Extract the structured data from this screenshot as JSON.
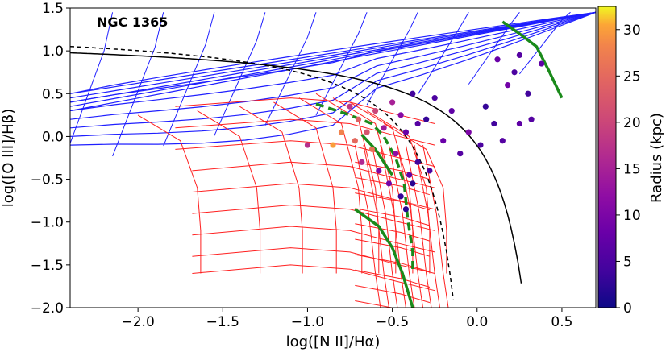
{
  "chart_data": {
    "type": "scatter",
    "title": "NGC 1365",
    "xlabel": "log([N II]/Hα)",
    "ylabel": "log([O III]/Hβ)",
    "xlim": [
      -2.4,
      0.7
    ],
    "ylim": [
      -2.0,
      1.5
    ],
    "xticks": [
      -2.0,
      -1.5,
      -1.0,
      -0.5,
      0.0,
      0.5
    ],
    "xtick_labels": [
      "−2.0",
      "−1.5",
      "−1.0",
      "−0.5",
      "0.0",
      "0.5"
    ],
    "yticks": [
      -2.0,
      -1.5,
      -1.0,
      -0.5,
      0.0,
      0.5,
      1.0,
      1.5
    ],
    "ytick_labels": [
      "−2.0",
      "−1.5",
      "−1.0",
      "−0.5",
      "0.0",
      "0.5",
      "1.0",
      "1.5"
    ],
    "colorbar": {
      "label": "Radius (kpc)",
      "colormap": "plasma",
      "range": [
        0,
        32.5
      ],
      "ticks": [
        0,
        5,
        10,
        15,
        20,
        25,
        30
      ],
      "tick_labels": [
        "0",
        "5",
        "10",
        "15",
        "20",
        "25",
        "30"
      ]
    },
    "curves": {
      "kewley_solid": {
        "color": "#000000",
        "style": "solid"
      },
      "kauffmann_dashed": {
        "color": "#000000",
        "style": "dashed"
      }
    },
    "grids": {
      "blue_grid": {
        "color": "#1f1fff"
      },
      "red_grid": {
        "color": "#ff1f1f"
      }
    },
    "green_tracks": {
      "color": "#1a8a1a",
      "upper_right": [
        [
          0.15,
          1.34
        ],
        [
          0.25,
          1.2
        ],
        [
          0.35,
          1.05
        ],
        [
          0.42,
          0.78
        ],
        [
          0.5,
          0.45
        ]
      ],
      "left_dashed": [
        [
          -0.95,
          0.38
        ],
        [
          -0.78,
          0.27
        ],
        [
          -0.62,
          0.15
        ],
        [
          -0.55,
          0.0
        ],
        [
          -0.48,
          -0.25
        ],
        [
          -0.43,
          -0.55
        ],
        [
          -0.41,
          -0.95
        ],
        [
          -0.38,
          -1.35
        ],
        [
          -0.38,
          -1.6
        ]
      ],
      "lower_solid": [
        [
          -0.72,
          -0.85
        ],
        [
          -0.58,
          -1.05
        ],
        [
          -0.5,
          -1.3
        ],
        [
          -0.44,
          -1.6
        ],
        [
          -0.38,
          -2.0
        ]
      ],
      "mid_solid": [
        [
          -0.68,
          0.02
        ],
        [
          -0.6,
          -0.15
        ],
        [
          -0.55,
          -0.3
        ],
        [
          -0.5,
          -0.45
        ]
      ]
    },
    "points": [
      {
        "x": -0.05,
        "y": 0.05,
        "r": 10
      },
      {
        "x": 0.05,
        "y": 0.35,
        "r": 3
      },
      {
        "x": 0.12,
        "y": 0.9,
        "r": 8
      },
      {
        "x": 0.25,
        "y": 0.95,
        "r": 6
      },
      {
        "x": 0.3,
        "y": 0.5,
        "r": 4
      },
      {
        "x": 0.38,
        "y": 0.85,
        "r": 7
      },
      {
        "x": 0.22,
        "y": 0.75,
        "r": 5
      },
      {
        "x": 0.18,
        "y": 0.6,
        "r": 9
      },
      {
        "x": 0.32,
        "y": 0.2,
        "r": 6
      },
      {
        "x": 0.1,
        "y": 0.15,
        "r": 4
      },
      {
        "x": -0.15,
        "y": 0.3,
        "r": 7
      },
      {
        "x": -0.25,
        "y": 0.45,
        "r": 5
      },
      {
        "x": -0.3,
        "y": 0.2,
        "r": 3
      },
      {
        "x": -0.2,
        "y": -0.05,
        "r": 8
      },
      {
        "x": -0.1,
        "y": -0.2,
        "r": 6
      },
      {
        "x": -0.35,
        "y": -0.3,
        "r": 4
      },
      {
        "x": -0.28,
        "y": -0.4,
        "r": 5
      },
      {
        "x": -0.38,
        "y": -0.55,
        "r": 2
      },
      {
        "x": -0.45,
        "y": -0.7,
        "r": 3
      },
      {
        "x": -0.42,
        "y": -0.85,
        "r": 2
      },
      {
        "x": -0.4,
        "y": -0.45,
        "r": 7
      },
      {
        "x": -0.48,
        "y": -0.2,
        "r": 12
      },
      {
        "x": -0.55,
        "y": 0.1,
        "r": 14
      },
      {
        "x": -0.6,
        "y": 0.3,
        "r": 20
      },
      {
        "x": -0.65,
        "y": 0.05,
        "r": 22
      },
      {
        "x": -0.7,
        "y": 0.2,
        "r": 24
      },
      {
        "x": -0.75,
        "y": 0.35,
        "r": 18
      },
      {
        "x": -0.62,
        "y": -0.15,
        "r": 26
      },
      {
        "x": -0.68,
        "y": -0.3,
        "r": 16
      },
      {
        "x": -0.58,
        "y": -0.4,
        "r": 10
      },
      {
        "x": -0.52,
        "y": -0.55,
        "r": 9
      },
      {
        "x": -0.5,
        "y": 0.4,
        "r": 15
      },
      {
        "x": -0.45,
        "y": 0.25,
        "r": 11
      },
      {
        "x": -0.42,
        "y": 0.05,
        "r": 8
      },
      {
        "x": -0.35,
        "y": 0.15,
        "r": 6
      },
      {
        "x": -0.8,
        "y": 0.05,
        "r": 28
      },
      {
        "x": -0.85,
        "y": -0.1,
        "r": 30
      },
      {
        "x": -1.0,
        "y": -0.1,
        "r": 17
      },
      {
        "x": -0.72,
        "y": -0.05,
        "r": 25
      },
      {
        "x": -0.38,
        "y": 0.5,
        "r": 4
      },
      {
        "x": 0.02,
        "y": -0.1,
        "r": 5
      },
      {
        "x": 0.25,
        "y": 0.15,
        "r": 7
      },
      {
        "x": 0.15,
        "y": -0.05,
        "r": 6
      }
    ]
  }
}
